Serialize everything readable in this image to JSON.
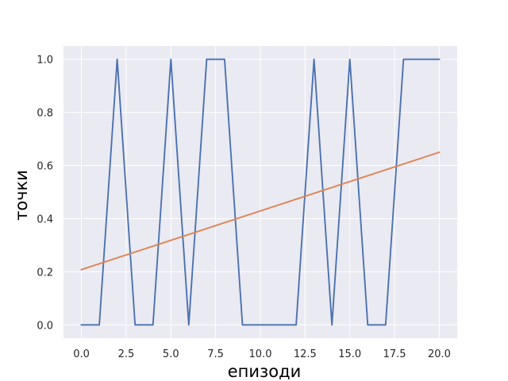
{
  "chart_data": {
    "type": "line",
    "title": "",
    "xlabel": "епизоди",
    "ylabel": "точки",
    "xlim": [
      -1,
      21
    ],
    "ylim": [
      -0.05,
      1.05
    ],
    "x_ticks": [
      0.0,
      2.5,
      5.0,
      7.5,
      10.0,
      12.5,
      15.0,
      17.5,
      20.0
    ],
    "x_tick_labels": [
      "0.0",
      "2.5",
      "5.0",
      "7.5",
      "10.0",
      "12.5",
      "15.0",
      "17.5",
      "20.0"
    ],
    "y_ticks": [
      0.0,
      0.2,
      0.4,
      0.6,
      0.8,
      1.0
    ],
    "y_tick_labels": [
      "0.0",
      "0.2",
      "0.4",
      "0.6",
      "0.8",
      "1.0"
    ],
    "grid": true,
    "background": "#eaeaf2",
    "gridColor": "#ffffff",
    "legend": "none",
    "series": [
      {
        "color": "#4c72b0",
        "x": [
          0,
          1,
          2,
          3,
          4,
          5,
          6,
          7,
          8,
          9,
          10,
          11,
          12,
          13,
          14,
          15,
          16,
          17,
          18,
          19,
          20
        ],
        "y": [
          0,
          0,
          1,
          0,
          0,
          1,
          0,
          1,
          1,
          0,
          0,
          0,
          0,
          1,
          0,
          1,
          0,
          0,
          1,
          1,
          1
        ]
      },
      {
        "color": "#dd8452",
        "x": [
          0,
          20
        ],
        "y": [
          0.208,
          0.65
        ]
      }
    ]
  }
}
